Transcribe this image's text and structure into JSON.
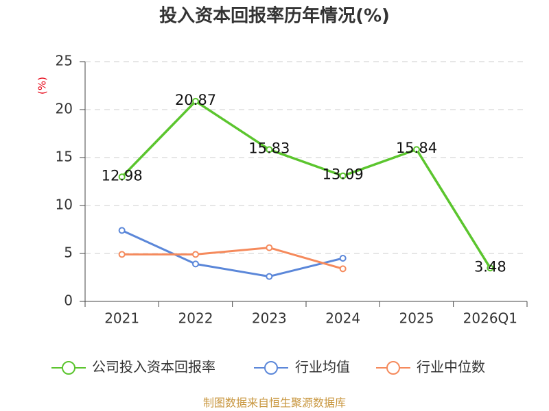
{
  "source_note": "制图数据来自恒生聚源数据库",
  "chart_data": {
    "type": "line",
    "title": "投入资本回报率历年情况(%)",
    "ylabel": "(%)",
    "ylim": [
      0,
      25
    ],
    "yticks": [
      0,
      5,
      10,
      15,
      20,
      25
    ],
    "grid": true,
    "legend_position": "bottom",
    "categories": [
      "2021",
      "2022",
      "2023",
      "2024",
      "2025",
      "2026Q1"
    ],
    "series": [
      {
        "name": "公司投入资本回报率",
        "color": "#5bc52e",
        "values": [
          12.98,
          20.87,
          15.83,
          13.09,
          15.84,
          3.48
        ],
        "data_labels": true
      },
      {
        "name": "行业均值",
        "color": "#5b87d9",
        "values": [
          7.4,
          3.9,
          2.6,
          4.5,
          null,
          null
        ],
        "data_labels": false
      },
      {
        "name": "行业中位数",
        "color": "#f58a5c",
        "values": [
          4.9,
          4.9,
          5.6,
          3.4,
          null,
          null
        ],
        "data_labels": false
      }
    ]
  }
}
